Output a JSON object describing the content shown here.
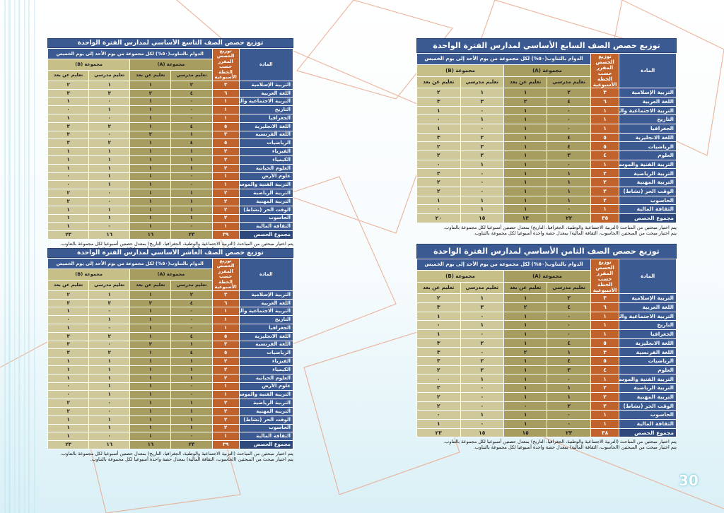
{
  "page_number": "30",
  "headers": {
    "subject": "المادة",
    "weekly": "توزيع الحصص المقرر حسب الخطة الأسبوعية",
    "rotation": "الدوام بالتناوب(٥٠%) لكل مجموعة من يوم الأحد إلى يوم الخميس",
    "group_a": "مجموعة (A)",
    "group_b": "مجموعة (B)",
    "in_school": "تعليم مدرسي",
    "remote": "تعليم عن بعد"
  },
  "tables": [
    {
      "title": "توزيع حصص الصف التاسع الأساسي لمدارس الفترة الواحدة",
      "rows": [
        {
          "subject": "التربية الإسلامية",
          "total": "٣",
          "a_school": "٢",
          "a_remote": "١",
          "b_school": "١",
          "b_remote": "٢"
        },
        {
          "subject": "اللغة العربية",
          "total": "٦",
          "a_school": "٤",
          "a_remote": "٢",
          "b_school": "٣",
          "b_remote": "٣"
        },
        {
          "subject": "التربية الاجتماعية والوطنية",
          "total": "١",
          "a_school": "٠",
          "a_remote": "١",
          "b_school": "٠",
          "b_remote": "١"
        },
        {
          "subject": "التاريخ",
          "total": "١",
          "a_school": "٠",
          "a_remote": "١",
          "b_school": "١",
          "b_remote": "٠"
        },
        {
          "subject": "الجغرافيا",
          "total": "١",
          "a_school": "٠",
          "a_remote": "١",
          "b_school": "٠",
          "b_remote": "١"
        },
        {
          "subject": "اللغة الانجليزية",
          "total": "٥",
          "a_school": "٤",
          "a_remote": "١",
          "b_school": "٢",
          "b_remote": "٣"
        },
        {
          "subject": "اللغة الفرنسية",
          "total": "٣",
          "a_school": "١",
          "a_remote": "٢",
          "b_school": "٠",
          "b_remote": "٣"
        },
        {
          "subject": "الرياضيات",
          "total": "٥",
          "a_school": "٤",
          "a_remote": "١",
          "b_school": "٢",
          "b_remote": "٣"
        },
        {
          "subject": "الفيزياء",
          "total": "٢",
          "a_school": "١",
          "a_remote": "١",
          "b_school": "١",
          "b_remote": "١"
        },
        {
          "subject": "الكيمياء",
          "total": "٢",
          "a_school": "١",
          "a_remote": "١",
          "b_school": "١",
          "b_remote": "١"
        },
        {
          "subject": "العلوم الحياتية",
          "total": "٢",
          "a_school": "١",
          "a_remote": "١",
          "b_school": "١",
          "b_remote": "١"
        },
        {
          "subject": "علوم الأرض",
          "total": "١",
          "a_school": "٠",
          "a_remote": "١",
          "b_school": "١",
          "b_remote": "٠"
        },
        {
          "subject": "التربية الفنية والموسيقية",
          "total": "١",
          "a_school": "٠",
          "a_remote": "١",
          "b_school": "١",
          "b_remote": "٠"
        },
        {
          "subject": "التربية الرياضية",
          "total": "٢",
          "a_school": "١",
          "a_remote": "١",
          "b_school": "٠",
          "b_remote": "٢"
        },
        {
          "subject": "التربية المهنية",
          "total": "٢",
          "a_school": "١",
          "a_remote": "١",
          "b_school": "٠",
          "b_remote": "٢"
        },
        {
          "subject": "الوقت الحر (نشاط)",
          "total": "٢",
          "a_school": "١",
          "a_remote": "١",
          "b_school": "١",
          "b_remote": "١"
        },
        {
          "subject": "الحاسوب",
          "total": "٢",
          "a_school": "١",
          "a_remote": "١",
          "b_school": "١",
          "b_remote": "١"
        },
        {
          "subject": "الثقافة المالية",
          "total": "١",
          "a_school": "٠",
          "a_remote": "١",
          "b_school": "٠",
          "b_remote": "١"
        }
      ],
      "sum": {
        "subject": "مجموع الحصص",
        "total": "٣٩",
        "a_school": "٢٣",
        "a_remote": "١٦",
        "b_school": "١٦",
        "b_remote": "٢٣"
      },
      "notes": [
        "يتم اختيار مبحثين من المباحث (التربية الاجتماعية والوطنية، الجغرافيا، التاريخ) بمعدل حصتين أسبوعيا لكل مجموعة بالتناوب.",
        "يتم اختيار مبحث من المبحثين (الحاسوب، الثقافة المالية) بمعدل حصة واحدة أسبوعيا لكل مجموعة بالتناوب."
      ]
    },
    {
      "title": "توزيع حصص الصف العاشر الأساسي لمدارس الفترة الواحدة",
      "rows": [
        {
          "subject": "التربية الإسلامية",
          "total": "٣",
          "a_school": "٢",
          "a_remote": "١",
          "b_school": "١",
          "b_remote": "٢"
        },
        {
          "subject": "اللغة العربية",
          "total": "٦",
          "a_school": "٤",
          "a_remote": "٢",
          "b_school": "٣",
          "b_remote": "٣"
        },
        {
          "subject": "التربية الاجتماعية والوطنية",
          "total": "١",
          "a_school": "٠",
          "a_remote": "١",
          "b_school": "٠",
          "b_remote": "١"
        },
        {
          "subject": "التاريخ",
          "total": "١",
          "a_school": "٠",
          "a_remote": "١",
          "b_school": "١",
          "b_remote": "٠"
        },
        {
          "subject": "الجغرافيا",
          "total": "١",
          "a_school": "٠",
          "a_remote": "١",
          "b_school": "٠",
          "b_remote": "١"
        },
        {
          "subject": "اللغة الانجليزية",
          "total": "٥",
          "a_school": "٤",
          "a_remote": "١",
          "b_school": "٢",
          "b_remote": "٣"
        },
        {
          "subject": "اللغة الفرنسية",
          "total": "٣",
          "a_school": "١",
          "a_remote": "٢",
          "b_school": "٠",
          "b_remote": "٣"
        },
        {
          "subject": "الرياضيات",
          "total": "٥",
          "a_school": "٤",
          "a_remote": "١",
          "b_school": "٢",
          "b_remote": "٣"
        },
        {
          "subject": "الفيزياء",
          "total": "٢",
          "a_school": "١",
          "a_remote": "١",
          "b_school": "١",
          "b_remote": "١"
        },
        {
          "subject": "الكيمياء",
          "total": "٢",
          "a_school": "١",
          "a_remote": "١",
          "b_school": "١",
          "b_remote": "١"
        },
        {
          "subject": "العلوم الحياتية",
          "total": "٢",
          "a_school": "١",
          "a_remote": "١",
          "b_school": "١",
          "b_remote": "١"
        },
        {
          "subject": "علوم الأرض",
          "total": "١",
          "a_school": "٠",
          "a_remote": "١",
          "b_school": "١",
          "b_remote": "٠"
        },
        {
          "subject": "التربية الفنية والموسيقية",
          "total": "١",
          "a_school": "٠",
          "a_remote": "١",
          "b_school": "١",
          "b_remote": "٠"
        },
        {
          "subject": "التربية الرياضية",
          "total": "٢",
          "a_school": "١",
          "a_remote": "١",
          "b_school": "٠",
          "b_remote": "٢"
        },
        {
          "subject": "التربية المهنية",
          "total": "٢",
          "a_school": "١",
          "a_remote": "١",
          "b_school": "٠",
          "b_remote": "٢"
        },
        {
          "subject": "الوقت الحر (نشاط)",
          "total": "٢",
          "a_school": "١",
          "a_remote": "١",
          "b_school": "١",
          "b_remote": "١"
        },
        {
          "subject": "الحاسوب",
          "total": "٢",
          "a_school": "١",
          "a_remote": "١",
          "b_school": "١",
          "b_remote": "١"
        },
        {
          "subject": "الثقافة المالية",
          "total": "١",
          "a_school": "٠",
          "a_remote": "١",
          "b_school": "٠",
          "b_remote": "١"
        }
      ],
      "sum": {
        "subject": "مجموع الحصص",
        "total": "٣٩",
        "a_school": "٢٣",
        "a_remote": "١٦",
        "b_school": "١٦",
        "b_remote": "٢٣"
      },
      "notes": [
        "يتم اختيار مبحثين من المباحث (التربية الاجتماعية والوطنية، الجغرافيا، التاريخ) بمعدل حصتين أسبوعيا لكل مجموعة بالتناوب.",
        "يتم اختيار مبحث من المبحثين (الحاسوب، الثقافة المالية) بمعدل حصة واحدة أسبوعيا لكل مجموعة بالتناوب."
      ]
    },
    {
      "title": "توزيع حصص الصف السابع الأساسي لمدارس الفترة الواحدة",
      "rows": [
        {
          "subject": "التربية الإسلامية",
          "total": "٣",
          "a_school": "٢",
          "a_remote": "١",
          "b_school": "١",
          "b_remote": "٢"
        },
        {
          "subject": "اللغة العربية",
          "total": "٦",
          "a_school": "٤",
          "a_remote": "٢",
          "b_school": "٣",
          "b_remote": "٣"
        },
        {
          "subject": "التربية الاجتماعية والوطنية",
          "total": "١",
          "a_school": "٠",
          "a_remote": "١",
          "b_school": "٠",
          "b_remote": "١"
        },
        {
          "subject": "التاريخ",
          "total": "١",
          "a_school": "٠",
          "a_remote": "١",
          "b_school": "١",
          "b_remote": "٠"
        },
        {
          "subject": "الجغرافيا",
          "total": "١",
          "a_school": "٠",
          "a_remote": "١",
          "b_school": "٠",
          "b_remote": "١"
        },
        {
          "subject": "اللغة الانجليزية",
          "total": "٥",
          "a_school": "٤",
          "a_remote": "١",
          "b_school": "٢",
          "b_remote": "٣"
        },
        {
          "subject": "الرياضيات",
          "total": "٥",
          "a_school": "٤",
          "a_remote": "١",
          "b_school": "٣",
          "b_remote": "٢"
        },
        {
          "subject": "العلوم",
          "total": "٤",
          "a_school": "٣",
          "a_remote": "١",
          "b_school": "٢",
          "b_remote": "٢"
        },
        {
          "subject": "التربية الفنية والموسيقية",
          "total": "١",
          "a_school": "٠",
          "a_remote": "١",
          "b_school": "١",
          "b_remote": "٠"
        },
        {
          "subject": "التربية الرياضية",
          "total": "٢",
          "a_school": "١",
          "a_remote": "١",
          "b_school": "٠",
          "b_remote": "٢"
        },
        {
          "subject": "التربية المهنية",
          "total": "٢",
          "a_school": "١",
          "a_remote": "١",
          "b_school": "٠",
          "b_remote": "٢"
        },
        {
          "subject": "الوقت الحر (نشاط)",
          "total": "٢",
          "a_school": "١",
          "a_remote": "١",
          "b_school": "٠",
          "b_remote": "٢"
        },
        {
          "subject": "الحاسوب",
          "total": "٢",
          "a_school": "١",
          "a_remote": "١",
          "b_school": "١",
          "b_remote": "١"
        },
        {
          "subject": "الثقافة المالية",
          "total": "١",
          "a_school": "٠",
          "a_remote": "١",
          "b_school": "١",
          "b_remote": "٠"
        }
      ],
      "sum": {
        "subject": "مجموع الحصص",
        "total": "٣٥",
        "a_school": "٢٢",
        "a_remote": "١٣",
        "b_school": "١٥",
        "b_remote": "٢٠"
      },
      "notes": [
        "يتم اختيار مبحثين من المباحث (التربية الاجتماعية والوطنية، الجغرافيا، التاريخ) بمعدل حصتين أسبوعيا لكل مجموعة بالتناوب.",
        "يتم اختيار مبحث من المبحثين (الحاسوب، الثقافة المالية) بمعدل حصة واحدة أسبوعيا لكل مجموعة بالتناوب."
      ]
    },
    {
      "title": "توزيع حصص الصف الثامن الأساسي لمدارس الفترة الواحدة",
      "rows": [
        {
          "subject": "التربية الإسلامية",
          "total": "٣",
          "a_school": "٢",
          "a_remote": "١",
          "b_school": "١",
          "b_remote": "٢"
        },
        {
          "subject": "اللغة العربية",
          "total": "٦",
          "a_school": "٤",
          "a_remote": "٢",
          "b_school": "٣",
          "b_remote": "٣"
        },
        {
          "subject": "التربية الاجتماعية والوطنية",
          "total": "١",
          "a_school": "٠",
          "a_remote": "١",
          "b_school": "٠",
          "b_remote": "١"
        },
        {
          "subject": "التاريخ",
          "total": "١",
          "a_school": "٠",
          "a_remote": "١",
          "b_school": "١",
          "b_remote": "٠"
        },
        {
          "subject": "الجغرافيا",
          "total": "١",
          "a_school": "٠",
          "a_remote": "١",
          "b_school": "٠",
          "b_remote": "١"
        },
        {
          "subject": "اللغة الانجليزية",
          "total": "٥",
          "a_school": "٤",
          "a_remote": "١",
          "b_school": "٢",
          "b_remote": "٣"
        },
        {
          "subject": "اللغة الفرنسية",
          "total": "٣",
          "a_school": "١",
          "a_remote": "٢",
          "b_school": "٠",
          "b_remote": "٣"
        },
        {
          "subject": "الرياضيات",
          "total": "٥",
          "a_school": "٤",
          "a_remote": "١",
          "b_school": "٢",
          "b_remote": "٣"
        },
        {
          "subject": "العلوم",
          "total": "٤",
          "a_school": "٣",
          "a_remote": "١",
          "b_school": "٢",
          "b_remote": "٢"
        },
        {
          "subject": "التربية الفنية والموسيقية",
          "total": "١",
          "a_school": "٠",
          "a_remote": "١",
          "b_school": "١",
          "b_remote": "٠"
        },
        {
          "subject": "التربية الرياضية",
          "total": "٢",
          "a_school": "١",
          "a_remote": "١",
          "b_school": "٠",
          "b_remote": "٢"
        },
        {
          "subject": "التربية المهنية",
          "total": "٢",
          "a_school": "١",
          "a_remote": "١",
          "b_school": "٠",
          "b_remote": "٢"
        },
        {
          "subject": "الوقت الحر (نشاط)",
          "total": "٢",
          "a_school": "٢",
          "a_remote": "٠",
          "b_school": "٠",
          "b_remote": "٢"
        },
        {
          "subject": "الحاسوب",
          "total": "١",
          "a_school": "٠",
          "a_remote": "١",
          "b_school": "١",
          "b_remote": "٠"
        },
        {
          "subject": "الثقافة المالية",
          "total": "١",
          "a_school": "٠",
          "a_remote": "١",
          "b_school": "٠",
          "b_remote": "١"
        }
      ],
      "sum": {
        "subject": "مجموع الحصص",
        "total": "٣٨",
        "a_school": "٢٣",
        "a_remote": "١٥",
        "b_school": "١٥",
        "b_remote": "٢٣"
      },
      "notes": [
        "يتم اختيار مبحثين من المباحث (التربية الاجتماعية والوطنية، الجغرافيا، التاريخ) بمعدل حصتين أسبوعيا لكل مجموعة بالتناوب.",
        "يتم اختيار مبحث من المبحثين (الحاسوب، الثقافة المالية) بمعدل حصة واحدة أسبوعيا لكل مجموعة بالتناوب."
      ]
    }
  ]
}
